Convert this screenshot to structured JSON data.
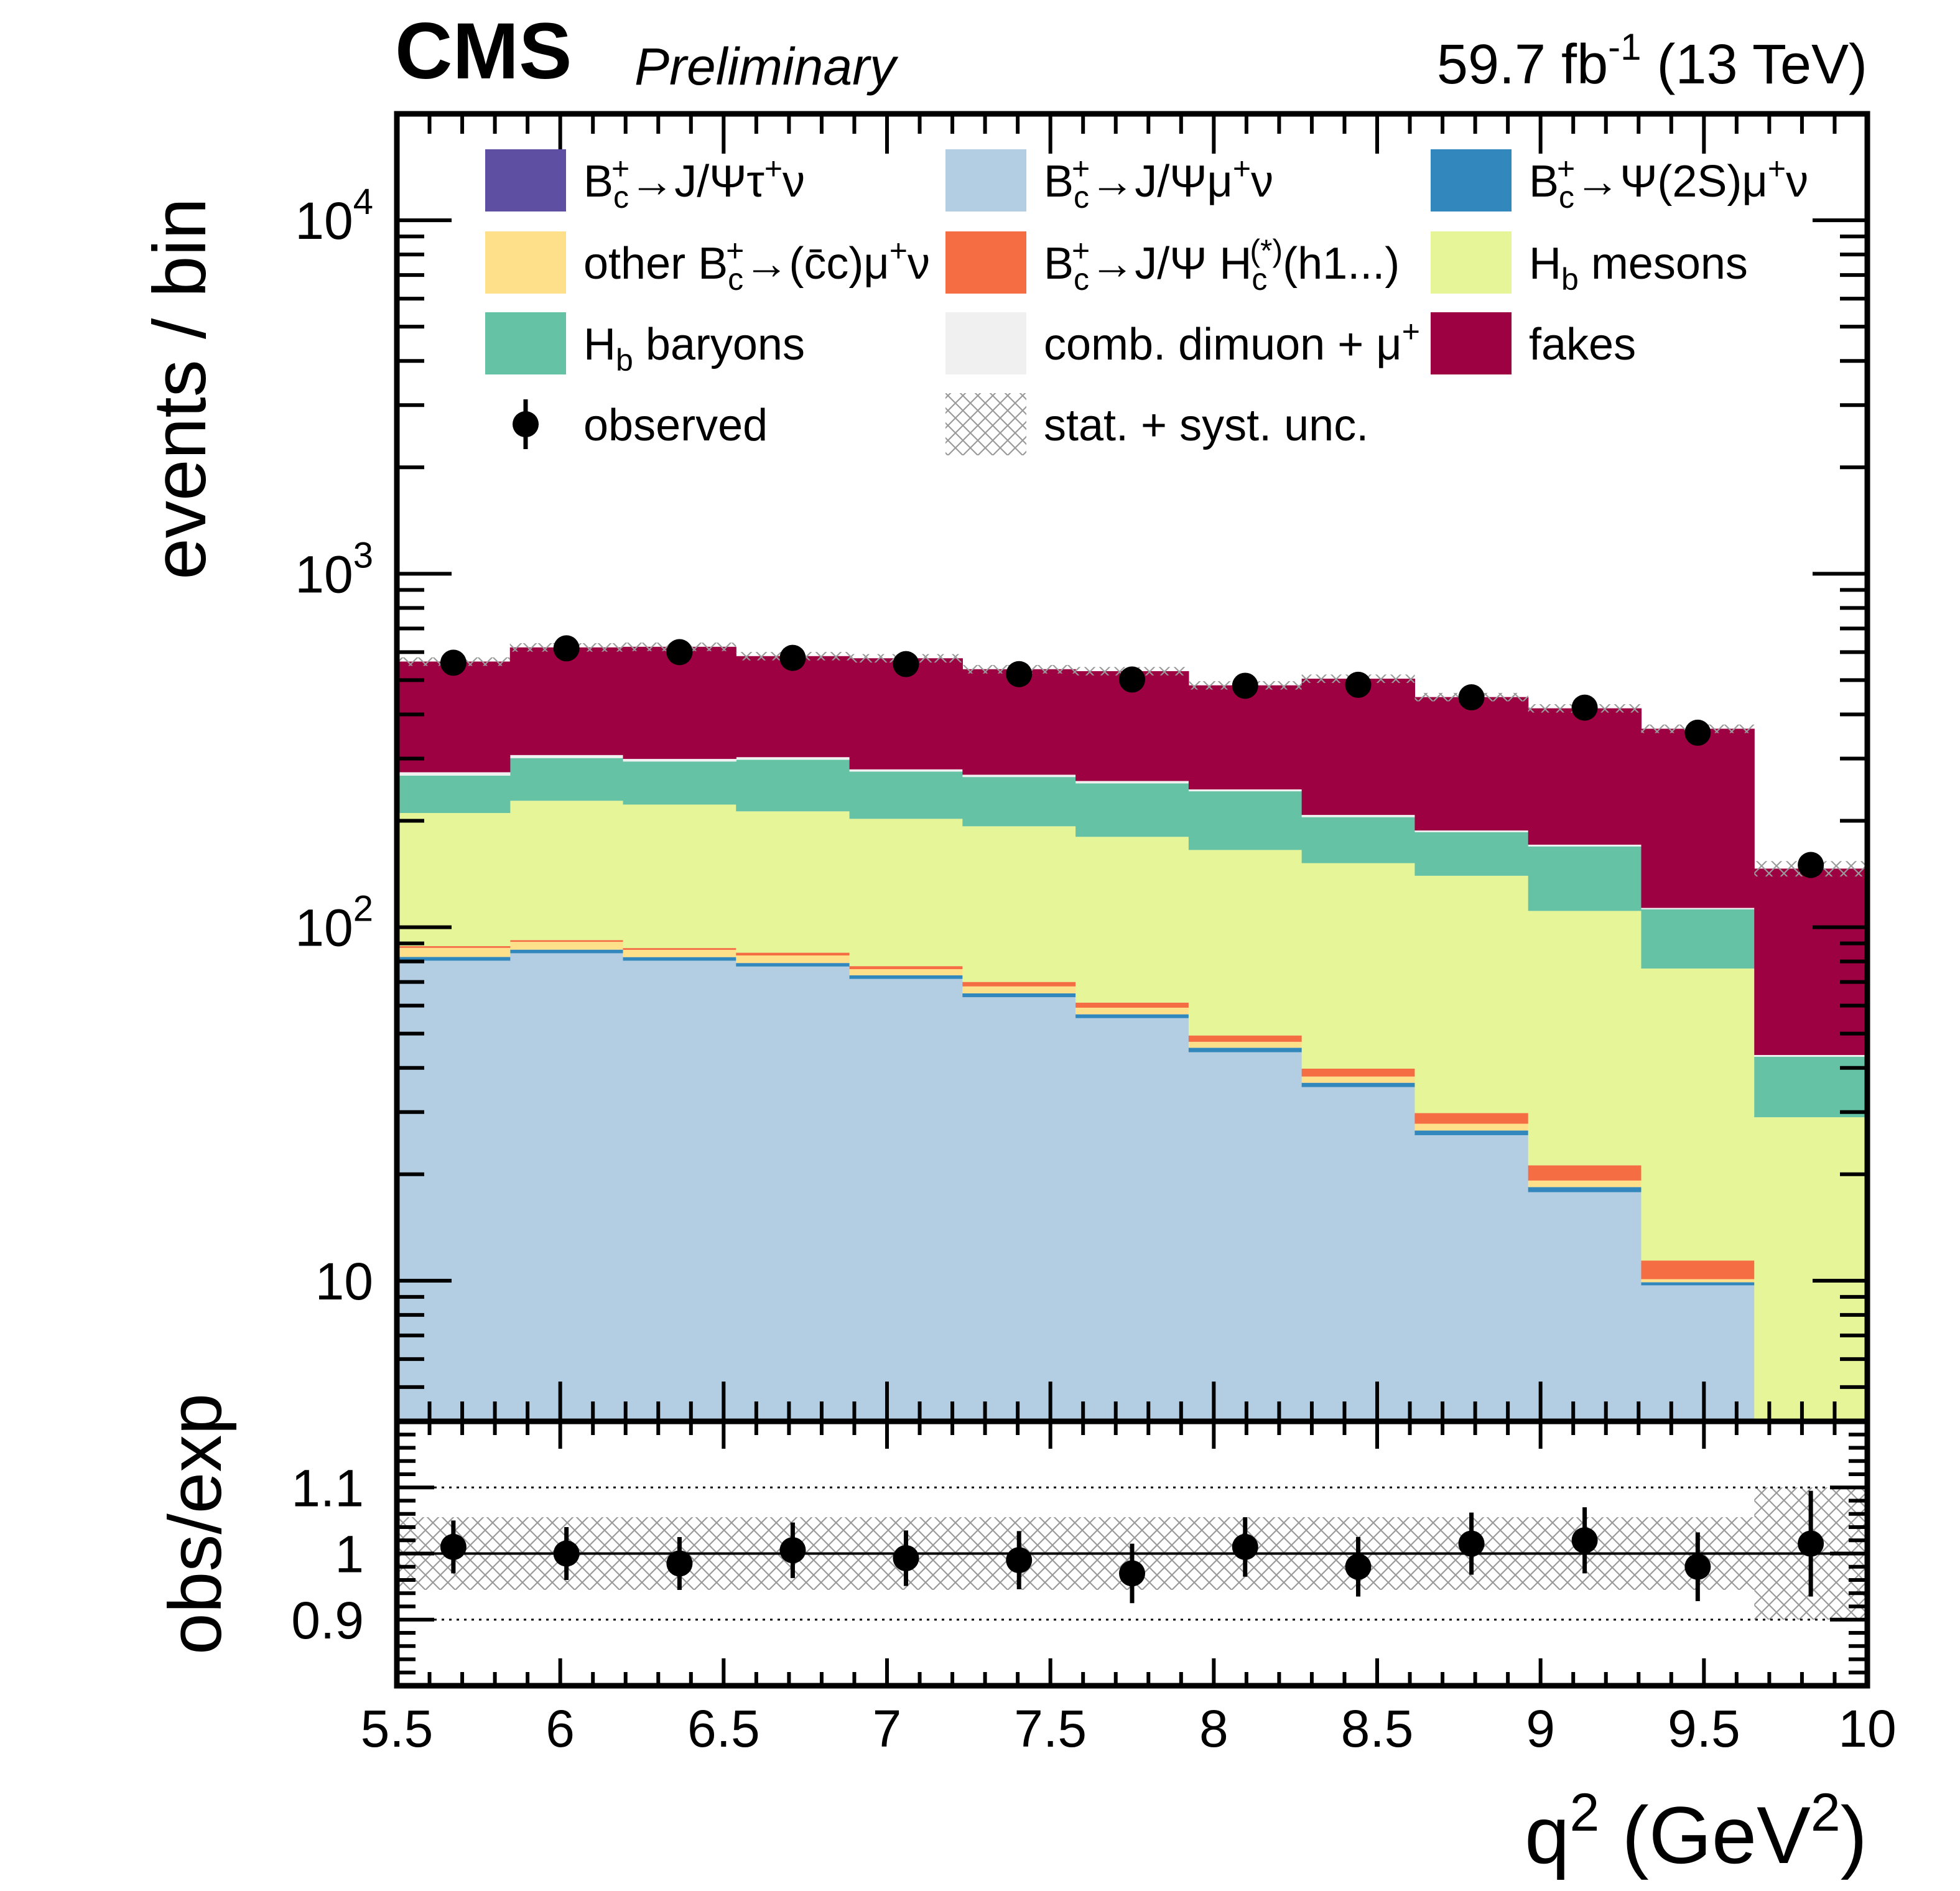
{
  "header": {
    "experiment": "CMS",
    "status": "Preliminary",
    "lumi": "59.7 fb",
    "lumi_exp": "-1",
    "energy": " (13 TeV)"
  },
  "chart_data": {
    "type": "bar",
    "subtype": "stacked-histogram-with-ratio",
    "x": {
      "label": "q",
      "label_exp1": "2",
      "label_unit": " (GeV",
      "label_exp2": "2",
      "label_close": ")",
      "range": [
        5.5,
        10
      ],
      "bins": [
        5.5,
        5.846,
        6.192,
        6.538,
        6.885,
        7.231,
        7.577,
        7.923,
        8.269,
        8.615,
        8.962,
        9.308,
        9.654,
        10.0
      ],
      "ticks": [
        "5.5",
        "6",
        "6.5",
        "7",
        "7.5",
        "8",
        "8.5",
        "9",
        "9.5",
        "10"
      ]
    },
    "main": {
      "ylabel": "events / bin",
      "yscale": "log",
      "yrange": [
        4,
        20000
      ],
      "y_ticks": [
        {
          "value": 10,
          "base": "10",
          "exp": ""
        },
        {
          "value": 100,
          "base": "10",
          "exp": "2"
        },
        {
          "value": 1000,
          "base": "10",
          "exp": "3"
        },
        {
          "value": 10000,
          "base": "10",
          "exp": "4"
        }
      ]
    },
    "series": [
      {
        "name": "Bc+ → J/Ψ τ+ ν",
        "color": "#5e4fa2",
        "values": [
          0.4,
          0.4,
          0.4,
          0.4,
          0.4,
          0.4,
          0.3,
          0.3,
          0.3,
          0.3,
          0.3,
          0.2,
          0
        ]
      },
      {
        "name": "Bc+ → J/Ψ μ+ ν",
        "color": "#b3cde3",
        "values": [
          80,
          84,
          80,
          77,
          71,
          63,
          55,
          44,
          35,
          25.5,
          17.5,
          9.5,
          0
        ]
      },
      {
        "name": "Bc+ → Ψ(2S) μ+ ν",
        "color": "#3288bd",
        "values": [
          2.0,
          2.0,
          1.9,
          1.8,
          1.7,
          1.6,
          1.4,
          1.3,
          1.0,
          0.8,
          0.6,
          0.2,
          0
        ]
      },
      {
        "name": "other Bc+ → (c̄c) μ+ ν",
        "color": "#fee08b",
        "values": [
          5.0,
          4.5,
          4.0,
          4.0,
          3.0,
          3.0,
          2.5,
          1.8,
          1.5,
          1.2,
          0.8,
          0.2,
          0
        ]
      },
      {
        "name": "Bc+ → J/Ψ Hc(*) (h1...)",
        "color": "#f46d43",
        "values": [
          1.0,
          1.0,
          1.0,
          1.5,
          1.5,
          2.0,
          2.0,
          2.0,
          2.0,
          2.0,
          2.0,
          1.3,
          0
        ]
      },
      {
        "name": "Hb mesons",
        "color": "#e6f598",
        "values": [
          122,
          136,
          135,
          128,
          125,
          123,
          119,
          116,
          112,
          110,
          90,
          65,
          29
        ]
      },
      {
        "name": "Hb baryons",
        "color": "#66c2a5",
        "values": [
          58,
          73,
          72,
          85,
          73,
          73,
          75,
          77,
          53,
          46,
          58,
          36,
          14
        ]
      },
      {
        "name": "comb. dimuon + μ+",
        "color": "#f0f0f0",
        "values": [
          6,
          6,
          5,
          5,
          4,
          4,
          4,
          3,
          3,
          2,
          2,
          1,
          0.5
        ]
      },
      {
        "name": "fakes",
        "color": "#9e0142",
        "values": [
          290,
          312,
          322,
          282,
          297,
          267,
          271,
          238,
          297,
          260,
          245,
          251,
          103
        ]
      }
    ],
    "observed": {
      "name": "observed",
      "values": [
        560,
        615,
        600,
        578,
        555,
        520,
        502,
        482,
        485,
        447,
        418,
        355,
        150
      ]
    },
    "uncertainty_label": "stat. + syst. unc.",
    "ratio": {
      "ylabel": "obs/exp",
      "yrange": [
        0.8,
        1.2
      ],
      "y_ticks": [
        "0.9",
        "1",
        "1.1"
      ],
      "reference_lines": [
        0.9,
        1.0,
        1.1
      ],
      "values": [
        1.01,
        1.0,
        0.985,
        1.005,
        0.993,
        0.99,
        0.97,
        1.01,
        0.98,
        1.015,
        1.02,
        0.98,
        1.015
      ],
      "errors": [
        0.04,
        0.04,
        0.04,
        0.042,
        0.042,
        0.044,
        0.045,
        0.045,
        0.045,
        0.047,
        0.05,
        0.052,
        0.08
      ],
      "band": [
        0.055,
        0.055,
        0.055,
        0.055,
        0.055,
        0.055,
        0.055,
        0.055,
        0.055,
        0.055,
        0.055,
        0.055,
        0.1
      ]
    },
    "legend": {
      "placement": "top",
      "entries": [
        {
          "type": "fill",
          "color": "#5e4fa2",
          "parts": [
            [
              "t",
              "B"
            ],
            [
              "sub",
              "c"
            ],
            [
              "sup",
              "+"
            ],
            [
              "t",
              "→J/Ψτ"
            ],
            [
              "sup",
              "+"
            ],
            [
              "t",
              "ν"
            ]
          ]
        },
        {
          "type": "fill",
          "color": "#b3cde3",
          "parts": [
            [
              "t",
              "B"
            ],
            [
              "sub",
              "c"
            ],
            [
              "sup",
              "+"
            ],
            [
              "t",
              "→J/Ψμ"
            ],
            [
              "sup",
              "+"
            ],
            [
              "t",
              "ν"
            ]
          ]
        },
        {
          "type": "fill",
          "color": "#3288bd",
          "parts": [
            [
              "t",
              "B"
            ],
            [
              "sub",
              "c"
            ],
            [
              "sup",
              "+"
            ],
            [
              "t",
              "→Ψ(2S)μ"
            ],
            [
              "sup",
              "+"
            ],
            [
              "t",
              "ν"
            ]
          ]
        },
        {
          "type": "fill",
          "color": "#fee08b",
          "parts": [
            [
              "t",
              "other B"
            ],
            [
              "sub",
              "c"
            ],
            [
              "sup",
              "+"
            ],
            [
              "t",
              "→(c̄c)μ"
            ],
            [
              "sup",
              "+"
            ],
            [
              "t",
              "ν"
            ]
          ]
        },
        {
          "type": "fill",
          "color": "#f46d43",
          "parts": [
            [
              "t",
              "B"
            ],
            [
              "sub",
              "c"
            ],
            [
              "sup",
              "+"
            ],
            [
              "t",
              "→J/Ψ H"
            ],
            [
              "sub",
              "c"
            ],
            [
              "sup",
              "(*)"
            ],
            [
              "t",
              "(h1...)"
            ]
          ]
        },
        {
          "type": "fill",
          "color": "#e6f598",
          "parts": [
            [
              "t",
              "H"
            ],
            [
              "sub",
              "b"
            ],
            [
              "t",
              " mesons"
            ]
          ]
        },
        {
          "type": "fill",
          "color": "#66c2a5",
          "parts": [
            [
              "t",
              "H"
            ],
            [
              "sub",
              "b"
            ],
            [
              "t",
              " baryons"
            ]
          ]
        },
        {
          "type": "fill",
          "color": "#f0f0f0",
          "parts": [
            [
              "t",
              "comb. dimuon + μ"
            ],
            [
              "sup",
              "+"
            ]
          ]
        },
        {
          "type": "fill",
          "color": "#9e0142",
          "parts": [
            [
              "t",
              "fakes"
            ]
          ]
        },
        {
          "type": "marker",
          "color": "#000000",
          "parts": [
            [
              "t",
              "observed"
            ]
          ]
        },
        {
          "type": "hatch",
          "color": "#a0a0a0",
          "parts": [
            [
              "t",
              "stat. + syst. unc."
            ]
          ]
        }
      ]
    }
  }
}
